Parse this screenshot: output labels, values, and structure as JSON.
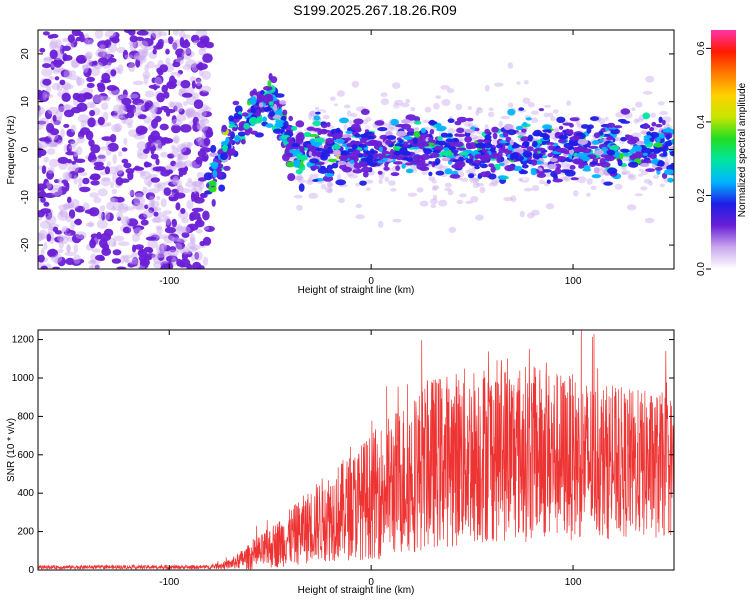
{
  "figure_title": "S199.2025.267.18.26.R09",
  "chart_data": [
    {
      "type": "heatmap",
      "title": "",
      "xlabel": "Height of straight line (km)",
      "ylabel": "Frequency (Hz)",
      "xlim": [
        -165,
        150
      ],
      "ylim": [
        -25,
        25
      ],
      "xticks": [
        -100,
        0,
        100
      ],
      "yticks": [
        -20,
        -10,
        0,
        10,
        20
      ],
      "colorbar": {
        "label": "Normalized spectral amplitude",
        "range": [
          0.0,
          0.65
        ],
        "ticks": [
          "0.0",
          "0.2",
          "0.4",
          "0.6"
        ],
        "colormap": [
          "#ffffff",
          "#c9a8ee",
          "#6a1fd6",
          "#1e1ee6",
          "#00b4ff",
          "#00e6a0",
          "#22dd22",
          "#c8e600",
          "#ffd000",
          "#ff7a00",
          "#ff1a00",
          "#ff33aa"
        ]
      },
      "description_values": {
        "noise_region_x": [
          -165,
          -80
        ],
        "ridge_points": [
          {
            "x": -80,
            "y": -8
          },
          {
            "x": -75,
            "y": -3
          },
          {
            "x": -70,
            "y": 2
          },
          {
            "x": -62,
            "y": 6
          },
          {
            "x": -55,
            "y": 10
          },
          {
            "x": -50,
            "y": 12
          },
          {
            "x": -45,
            "y": 6
          },
          {
            "x": -40,
            "y": 1
          },
          {
            "x": -35,
            "y": -2
          },
          {
            "x": -30,
            "y": 1
          }
        ],
        "band_center_hz": 0,
        "band_x": [
          -30,
          150
        ],
        "band_halfwidth_hz": 4
      }
    },
    {
      "type": "line",
      "title": "",
      "xlabel": "Height of straight line (km)",
      "ylabel": "SNR (10 * v/v)",
      "xlim": [
        -165,
        150
      ],
      "ylim": [
        0,
        1250
      ],
      "xticks": [
        -100,
        0,
        100
      ],
      "yticks": [
        0,
        200,
        400,
        600,
        800,
        1000,
        1200
      ],
      "series": [
        {
          "color": "#ee3333",
          "envelope": [
            {
              "x": -165,
              "mean": 15,
              "spread": 10
            },
            {
              "x": -80,
              "mean": 15,
              "spread": 10
            },
            {
              "x": -70,
              "mean": 30,
              "spread": 25
            },
            {
              "x": -55,
              "mean": 90,
              "spread": 90
            },
            {
              "x": -40,
              "mean": 170,
              "spread": 150
            },
            {
              "x": -25,
              "mean": 260,
              "spread": 220
            },
            {
              "x": -10,
              "mean": 330,
              "spread": 280
            },
            {
              "x": 10,
              "mean": 440,
              "spread": 380
            },
            {
              "x": 30,
              "mean": 560,
              "spread": 450
            },
            {
              "x": 60,
              "mean": 620,
              "spread": 480
            },
            {
              "x": 90,
              "mean": 600,
              "spread": 450
            },
            {
              "x": 120,
              "mean": 560,
              "spread": 400
            },
            {
              "x": 150,
              "mean": 540,
              "spread": 380
            }
          ]
        }
      ]
    }
  ]
}
